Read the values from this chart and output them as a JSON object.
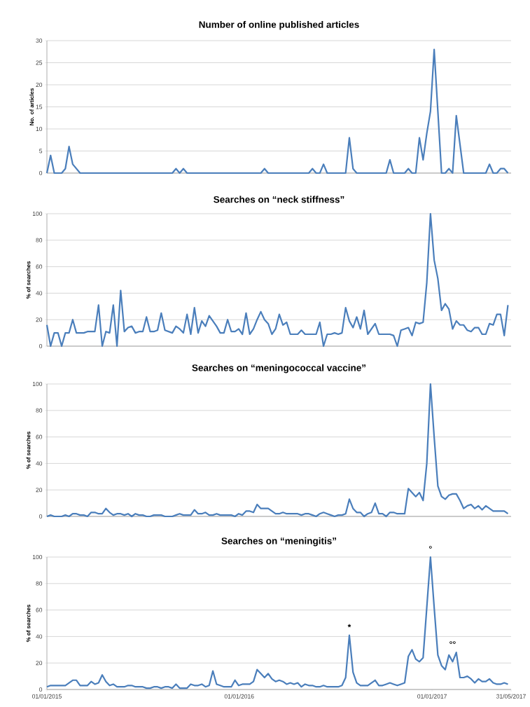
{
  "chart_data": [
    {
      "type": "line",
      "title": "Number of online published articles",
      "ylabel": "No. of articles",
      "color": "#4a7ebb",
      "grid": "y",
      "tick_labels": "y",
      "xlim": [
        "2015-01-01",
        "2017-05-31"
      ],
      "ylim": [
        0,
        30
      ],
      "yticks": [
        0,
        5,
        10,
        15,
        20,
        25,
        30
      ],
      "x": [
        "2015-01-01",
        "2015-01-08",
        "2015-01-15",
        "2015-01-29",
        "2015-02-05",
        "2015-02-12",
        "2015-02-19",
        "2015-03-05",
        "2015-08-27",
        "2015-09-03",
        "2015-09-10",
        "2015-09-17",
        "2015-09-24",
        "2016-02-11",
        "2016-02-18",
        "2016-02-25",
        "2016-05-12",
        "2016-05-19",
        "2016-05-26",
        "2016-06-02",
        "2016-06-09",
        "2016-06-16",
        "2016-07-21",
        "2016-07-28",
        "2016-08-04",
        "2016-08-11",
        "2016-10-06",
        "2016-10-13",
        "2016-10-20",
        "2016-11-10",
        "2016-11-17",
        "2016-11-24",
        "2016-12-01",
        "2016-12-08",
        "2016-12-15",
        "2016-12-22",
        "2016-12-29",
        "2017-01-05",
        "2017-01-19",
        "2017-01-26",
        "2017-02-02",
        "2017-02-09",
        "2017-02-16",
        "2017-03-02",
        "2017-04-13",
        "2017-04-20",
        "2017-04-27",
        "2017-05-04",
        "2017-05-11",
        "2017-05-18",
        "2017-05-25"
      ],
      "values": [
        0,
        4,
        0,
        0,
        1,
        6,
        2,
        0,
        0,
        1,
        0,
        1,
        0,
        0,
        1,
        0,
        0,
        1,
        0,
        0,
        2,
        0,
        0,
        8,
        1,
        0,
        0,
        3,
        0,
        0,
        1,
        0,
        0,
        8,
        3,
        9,
        14,
        28,
        0,
        0,
        1,
        0,
        13,
        0,
        0,
        2,
        0,
        0,
        1,
        1,
        0
      ]
    },
    {
      "type": "line",
      "title": "Searches on “neck stiffness”",
      "ylabel": "% of searches",
      "color": "#4a7ebb",
      "grid": "y",
      "tick_labels": "y",
      "xlim": [
        "2015-01-01",
        "2017-05-31"
      ],
      "ylim": [
        0,
        100
      ],
      "yticks": [
        0,
        20,
        40,
        60,
        80,
        100
      ],
      "x": [
        "2015-01-01",
        "2015-01-08",
        "2015-01-15",
        "2015-01-22",
        "2015-01-29",
        "2015-02-05",
        "2015-02-12",
        "2015-02-19",
        "2015-02-26",
        "2015-03-05",
        "2015-03-12",
        "2015-03-19",
        "2015-03-26",
        "2015-04-02",
        "2015-04-09",
        "2015-04-16",
        "2015-04-23",
        "2015-04-30",
        "2015-05-07",
        "2015-05-14",
        "2015-05-21",
        "2015-05-28",
        "2015-06-04",
        "2015-06-11",
        "2015-06-18",
        "2015-06-25",
        "2015-07-02",
        "2015-07-09",
        "2015-07-16",
        "2015-07-23",
        "2015-07-30",
        "2015-08-06",
        "2015-08-13",
        "2015-08-20",
        "2015-08-27",
        "2015-09-03",
        "2015-09-10",
        "2015-09-17",
        "2015-09-24",
        "2015-10-01",
        "2015-10-08",
        "2015-10-15",
        "2015-10-22",
        "2015-10-29",
        "2015-11-05",
        "2015-11-12",
        "2015-11-19",
        "2015-11-26",
        "2015-12-03",
        "2015-12-10",
        "2015-12-17",
        "2015-12-24",
        "2015-12-31",
        "2016-01-07",
        "2016-01-14",
        "2016-01-21",
        "2016-01-28",
        "2016-02-04",
        "2016-02-11",
        "2016-02-18",
        "2016-02-25",
        "2016-03-03",
        "2016-03-10",
        "2016-03-17",
        "2016-03-24",
        "2016-03-31",
        "2016-04-07",
        "2016-04-14",
        "2016-04-21",
        "2016-04-28",
        "2016-05-05",
        "2016-05-12",
        "2016-05-19",
        "2016-05-26",
        "2016-06-02",
        "2016-06-09",
        "2016-06-16",
        "2016-06-23",
        "2016-06-30",
        "2016-07-07",
        "2016-07-14",
        "2016-07-21",
        "2016-07-28",
        "2016-08-04",
        "2016-08-11",
        "2016-08-18",
        "2016-08-25",
        "2016-09-01",
        "2016-09-08",
        "2016-09-15",
        "2016-09-22",
        "2016-09-29",
        "2016-10-06",
        "2016-10-13",
        "2016-10-20",
        "2016-10-27",
        "2016-11-03",
        "2016-11-10",
        "2016-11-17",
        "2016-11-24",
        "2016-12-01",
        "2016-12-08",
        "2016-12-15",
        "2016-12-22",
        "2016-12-29",
        "2017-01-05",
        "2017-01-12",
        "2017-01-19",
        "2017-01-26",
        "2017-02-02",
        "2017-02-09",
        "2017-02-16",
        "2017-02-23",
        "2017-03-02",
        "2017-03-09",
        "2017-03-16",
        "2017-03-23",
        "2017-03-30",
        "2017-04-06",
        "2017-04-13",
        "2017-04-20",
        "2017-04-27",
        "2017-05-04",
        "2017-05-11",
        "2017-05-18",
        "2017-05-25"
      ],
      "values": [
        16,
        0,
        10,
        10,
        0,
        10,
        10,
        20,
        10,
        10,
        10,
        11,
        11,
        11,
        31,
        0,
        11,
        10,
        31,
        0,
        42,
        11,
        14,
        15,
        10,
        11,
        11,
        22,
        11,
        11,
        12,
        25,
        12,
        11,
        10,
        15,
        13,
        10,
        24,
        9,
        29,
        10,
        19,
        15,
        23,
        19,
        15,
        10,
        10,
        20,
        11,
        11,
        13,
        9,
        25,
        9,
        13,
        20,
        26,
        20,
        17,
        9,
        13,
        24,
        16,
        18,
        9,
        9,
        9,
        12,
        9,
        9,
        9,
        9,
        18,
        0,
        9,
        9,
        10,
        9,
        10,
        29,
        19,
        14,
        22,
        13,
        27,
        9,
        13,
        17,
        9,
        9,
        9,
        9,
        8,
        0,
        12,
        13,
        14,
        8,
        18,
        17,
        18,
        48,
        100,
        65,
        51,
        27,
        32,
        28,
        13,
        19,
        16,
        16,
        12,
        11,
        14,
        14,
        9,
        9,
        17,
        16,
        24,
        24,
        8,
        31
      ]
    },
    {
      "type": "line",
      "title": "Searches on “meningococcal vaccine”",
      "ylabel": "% of searches",
      "color": "#4a7ebb",
      "grid": "y",
      "tick_labels": "y",
      "xlim": [
        "2015-01-01",
        "2017-05-31"
      ],
      "ylim": [
        0,
        100
      ],
      "yticks": [
        0,
        20,
        40,
        60,
        80,
        100
      ],
      "x": [
        "2015-01-01",
        "2015-01-08",
        "2015-01-15",
        "2015-01-22",
        "2015-01-29",
        "2015-02-05",
        "2015-02-12",
        "2015-02-19",
        "2015-02-26",
        "2015-03-05",
        "2015-03-12",
        "2015-03-19",
        "2015-03-26",
        "2015-04-02",
        "2015-04-09",
        "2015-04-16",
        "2015-04-23",
        "2015-04-30",
        "2015-05-07",
        "2015-05-14",
        "2015-05-21",
        "2015-05-28",
        "2015-06-04",
        "2015-06-11",
        "2015-06-18",
        "2015-06-25",
        "2015-07-02",
        "2015-07-09",
        "2015-07-16",
        "2015-07-23",
        "2015-07-30",
        "2015-08-06",
        "2015-08-13",
        "2015-08-20",
        "2015-08-27",
        "2015-09-03",
        "2015-09-10",
        "2015-09-17",
        "2015-09-24",
        "2015-10-01",
        "2015-10-08",
        "2015-10-15",
        "2015-10-22",
        "2015-10-29",
        "2015-11-05",
        "2015-11-12",
        "2015-11-19",
        "2015-11-26",
        "2015-12-03",
        "2015-12-10",
        "2015-12-17",
        "2015-12-24",
        "2015-12-31",
        "2016-01-07",
        "2016-01-14",
        "2016-01-21",
        "2016-01-28",
        "2016-02-04",
        "2016-02-11",
        "2016-02-18",
        "2016-02-25",
        "2016-03-03",
        "2016-03-10",
        "2016-03-17",
        "2016-03-24",
        "2016-03-31",
        "2016-04-07",
        "2016-04-14",
        "2016-04-21",
        "2016-04-28",
        "2016-05-05",
        "2016-05-12",
        "2016-05-19",
        "2016-05-26",
        "2016-06-02",
        "2016-06-09",
        "2016-06-16",
        "2016-06-23",
        "2016-06-30",
        "2016-07-07",
        "2016-07-14",
        "2016-07-21",
        "2016-07-28",
        "2016-08-04",
        "2016-08-11",
        "2016-08-18",
        "2016-08-25",
        "2016-09-01",
        "2016-09-08",
        "2016-09-15",
        "2016-09-22",
        "2016-09-29",
        "2016-10-06",
        "2016-10-13",
        "2016-10-20",
        "2016-10-27",
        "2016-11-03",
        "2016-11-10",
        "2016-11-17",
        "2016-11-24",
        "2016-12-01",
        "2016-12-08",
        "2016-12-15",
        "2016-12-22",
        "2016-12-29",
        "2017-01-05",
        "2017-01-12",
        "2017-01-19",
        "2017-01-26",
        "2017-02-02",
        "2017-02-09",
        "2017-02-16",
        "2017-02-23",
        "2017-03-02",
        "2017-03-09",
        "2017-03-16",
        "2017-03-23",
        "2017-03-30",
        "2017-04-06",
        "2017-04-13",
        "2017-04-20",
        "2017-04-27",
        "2017-05-04",
        "2017-05-11",
        "2017-05-18",
        "2017-05-25"
      ],
      "values": [
        0,
        1,
        0,
        0,
        0,
        1,
        0,
        2,
        2,
        1,
        1,
        0,
        3,
        3,
        2,
        2,
        6,
        3,
        1,
        2,
        2,
        1,
        2,
        0,
        2,
        1,
        1,
        0,
        0,
        1,
        1,
        1,
        0,
        0,
        0,
        1,
        2,
        1,
        1,
        1,
        5,
        2,
        2,
        3,
        1,
        1,
        2,
        1,
        1,
        1,
        1,
        0,
        2,
        1,
        4,
        4,
        3,
        9,
        6,
        6,
        6,
        4,
        2,
        2,
        3,
        2,
        2,
        2,
        2,
        1,
        2,
        2,
        1,
        0,
        2,
        3,
        2,
        1,
        0,
        1,
        1,
        2,
        13,
        6,
        3,
        3,
        0,
        2,
        3,
        10,
        2,
        2,
        0,
        3,
        3,
        2,
        2,
        2,
        21,
        18,
        15,
        18,
        12,
        40,
        100,
        60,
        23,
        15,
        13,
        16,
        17,
        17,
        12,
        6,
        8,
        9,
        6,
        8,
        5,
        8,
        6,
        4,
        4,
        4,
        4,
        2
      ]
    },
    {
      "type": "line",
      "title": "Searches on “meningitis”",
      "ylabel": "% of searches",
      "color": "#4a7ebb",
      "grid": "y",
      "xlim": [
        "2015-01-01",
        "2017-05-31"
      ],
      "ylim": [
        0,
        100
      ],
      "yticks": [
        0,
        20,
        40,
        60,
        80,
        100
      ],
      "xticks": [
        {
          "value": "2015-01-01",
          "label": "01/01/2015"
        },
        {
          "value": "2016-01-01",
          "label": "01/01/2016"
        },
        {
          "value": "2017-01-01",
          "label": "01/01/2017"
        },
        {
          "value": "2017-05-31",
          "label": "31/05/2017"
        }
      ],
      "annotations": [
        {
          "text": "*",
          "x": "2016-07-28",
          "y": 41
        },
        {
          "text": "°",
          "x": "2016-12-29",
          "y": 100
        },
        {
          "text": "°°",
          "x": "2017-02-09",
          "y": 28
        }
      ],
      "x": [
        "2015-01-01",
        "2015-01-08",
        "2015-01-15",
        "2015-01-22",
        "2015-01-29",
        "2015-02-05",
        "2015-02-12",
        "2015-02-19",
        "2015-02-26",
        "2015-03-05",
        "2015-03-12",
        "2015-03-19",
        "2015-03-26",
        "2015-04-02",
        "2015-04-09",
        "2015-04-16",
        "2015-04-23",
        "2015-04-30",
        "2015-05-07",
        "2015-05-14",
        "2015-05-21",
        "2015-05-28",
        "2015-06-04",
        "2015-06-11",
        "2015-06-18",
        "2015-06-25",
        "2015-07-02",
        "2015-07-09",
        "2015-07-16",
        "2015-07-23",
        "2015-07-30",
        "2015-08-06",
        "2015-08-13",
        "2015-08-20",
        "2015-08-27",
        "2015-09-03",
        "2015-09-10",
        "2015-09-17",
        "2015-09-24",
        "2015-10-01",
        "2015-10-08",
        "2015-10-15",
        "2015-10-22",
        "2015-10-29",
        "2015-11-05",
        "2015-11-12",
        "2015-11-19",
        "2015-11-26",
        "2015-12-03",
        "2015-12-10",
        "2015-12-17",
        "2015-12-24",
        "2015-12-31",
        "2016-01-07",
        "2016-01-14",
        "2016-01-21",
        "2016-01-28",
        "2016-02-04",
        "2016-02-11",
        "2016-02-18",
        "2016-02-25",
        "2016-03-03",
        "2016-03-10",
        "2016-03-17",
        "2016-03-24",
        "2016-03-31",
        "2016-04-07",
        "2016-04-14",
        "2016-04-21",
        "2016-04-28",
        "2016-05-05",
        "2016-05-12",
        "2016-05-19",
        "2016-05-26",
        "2016-06-02",
        "2016-06-09",
        "2016-06-16",
        "2016-06-23",
        "2016-06-30",
        "2016-07-07",
        "2016-07-14",
        "2016-07-21",
        "2016-07-28",
        "2016-08-04",
        "2016-08-11",
        "2016-08-18",
        "2016-08-25",
        "2016-09-01",
        "2016-09-08",
        "2016-09-15",
        "2016-09-22",
        "2016-09-29",
        "2016-10-06",
        "2016-10-13",
        "2016-10-20",
        "2016-10-27",
        "2016-11-03",
        "2016-11-10",
        "2016-11-17",
        "2016-11-24",
        "2016-12-01",
        "2016-12-08",
        "2016-12-15",
        "2016-12-22",
        "2016-12-29",
        "2017-01-05",
        "2017-01-12",
        "2017-01-19",
        "2017-01-26",
        "2017-02-02",
        "2017-02-09",
        "2017-02-16",
        "2017-02-23",
        "2017-03-02",
        "2017-03-09",
        "2017-03-16",
        "2017-03-23",
        "2017-03-30",
        "2017-04-06",
        "2017-04-13",
        "2017-04-20",
        "2017-04-27",
        "2017-05-04",
        "2017-05-11",
        "2017-05-18",
        "2017-05-25"
      ],
      "values": [
        2,
        3,
        3,
        3,
        3,
        3,
        5,
        7,
        7,
        3,
        3,
        3,
        6,
        4,
        5,
        11,
        6,
        3,
        4,
        2,
        2,
        2,
        3,
        3,
        2,
        2,
        2,
        1,
        1,
        2,
        2,
        1,
        2,
        2,
        1,
        4,
        1,
        1,
        1,
        4,
        3,
        3,
        4,
        2,
        3,
        14,
        4,
        3,
        2,
        2,
        2,
        7,
        3,
        4,
        4,
        4,
        6,
        15,
        12,
        9,
        12,
        8,
        6,
        7,
        6,
        4,
        5,
        4,
        5,
        2,
        4,
        3,
        3,
        2,
        2,
        3,
        2,
        2,
        2,
        2,
        3,
        9,
        41,
        13,
        5,
        3,
        3,
        3,
        5,
        7,
        3,
        3,
        4,
        5,
        4,
        3,
        4,
        5,
        25,
        30,
        23,
        21,
        24,
        62,
        100,
        62,
        26,
        18,
        15,
        26,
        21,
        28,
        9,
        9,
        10,
        8,
        5,
        8,
        6,
        6,
        8,
        5,
        4,
        4,
        5,
        4
      ]
    }
  ]
}
